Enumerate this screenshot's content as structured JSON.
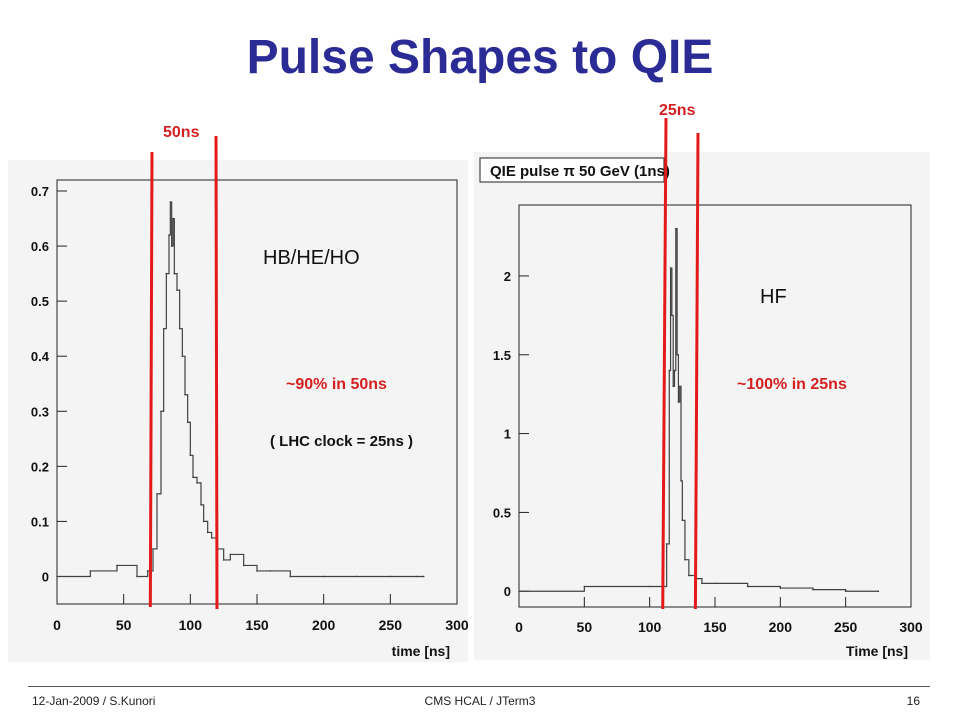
{
  "slide": {
    "title": "Pulse Shapes to QIE",
    "footer_left": "12-Jan-2009  / S.Kunori",
    "footer_center": "CMS HCAL / JTerm3",
    "footer_right": "16"
  },
  "colors": {
    "title": "#2b2b96",
    "marker": "#e41a1a",
    "annotation": "#d42020",
    "pulse": "#404040"
  },
  "annotations": {
    "left_window_label": "50ns",
    "right_window_label": "25ns",
    "left_detector_label": "HB/HE/HO",
    "right_detector_label": "HF",
    "left_fraction_label": "~90% in 50ns",
    "right_fraction_label": "~100% in 25ns",
    "clock_note": "( LHC clock = 25ns )"
  },
  "chart_data": [
    {
      "type": "line",
      "title": "",
      "xlabel": "time [ns]",
      "ylabel": "",
      "xlim": [
        0,
        300
      ],
      "ylim": [
        -0.05,
        0.72
      ],
      "xticks": [
        "0",
        "50",
        "100",
        "150",
        "200",
        "250",
        "300"
      ],
      "yticks": [
        "0",
        "0.1",
        "0.2",
        "0.3",
        "0.4",
        "0.5",
        "0.6",
        "0.7"
      ],
      "markers_x": [
        70,
        120
      ],
      "series": [
        {
          "x": [
            0,
            25,
            45,
            60,
            68,
            72,
            75,
            78,
            80,
            82,
            84,
            85,
            86,
            87,
            88,
            90,
            92,
            94,
            96,
            98,
            100,
            102,
            105,
            108,
            110,
            113,
            116,
            120,
            125,
            130,
            140,
            150,
            160,
            175,
            200,
            225,
            250,
            270,
            275
          ],
          "y": [
            0.0,
            0.01,
            0.02,
            0.0,
            0.01,
            0.05,
            0.15,
            0.3,
            0.45,
            0.55,
            0.62,
            0.68,
            0.6,
            0.65,
            0.55,
            0.52,
            0.45,
            0.4,
            0.33,
            0.28,
            0.22,
            0.18,
            0.17,
            0.13,
            0.1,
            0.08,
            0.07,
            0.05,
            0.03,
            0.04,
            0.02,
            0.01,
            0.01,
            0.0,
            0.0,
            0.0,
            0.0,
            0.0,
            0.0
          ]
        }
      ]
    },
    {
      "type": "line",
      "title": "QIE pulse π 50 GeV (1ns)",
      "xlabel": "Time [ns]",
      "ylabel": "",
      "xlim": [
        0,
        300
      ],
      "ylim": [
        -0.1,
        2.45
      ],
      "xticks": [
        "0",
        "50",
        "100",
        "150",
        "200",
        "250",
        "300"
      ],
      "yticks": [
        "0",
        "0.5",
        "1",
        "1.5",
        "2"
      ],
      "markers_x": [
        110,
        135
      ],
      "series": [
        {
          "x": [
            0,
            50,
            100,
            110,
            113,
            115,
            116,
            117,
            118,
            119,
            120,
            121,
            122,
            123,
            124,
            125,
            127,
            130,
            135,
            140,
            150,
            175,
            200,
            225,
            250,
            275
          ],
          "y": [
            0.0,
            0.03,
            0.03,
            0.03,
            0.3,
            1.4,
            2.05,
            1.75,
            1.3,
            1.4,
            2.3,
            1.5,
            1.2,
            1.3,
            0.7,
            0.45,
            0.2,
            0.1,
            0.08,
            0.05,
            0.05,
            0.03,
            0.02,
            0.01,
            0.0,
            0.0
          ]
        }
      ]
    }
  ]
}
